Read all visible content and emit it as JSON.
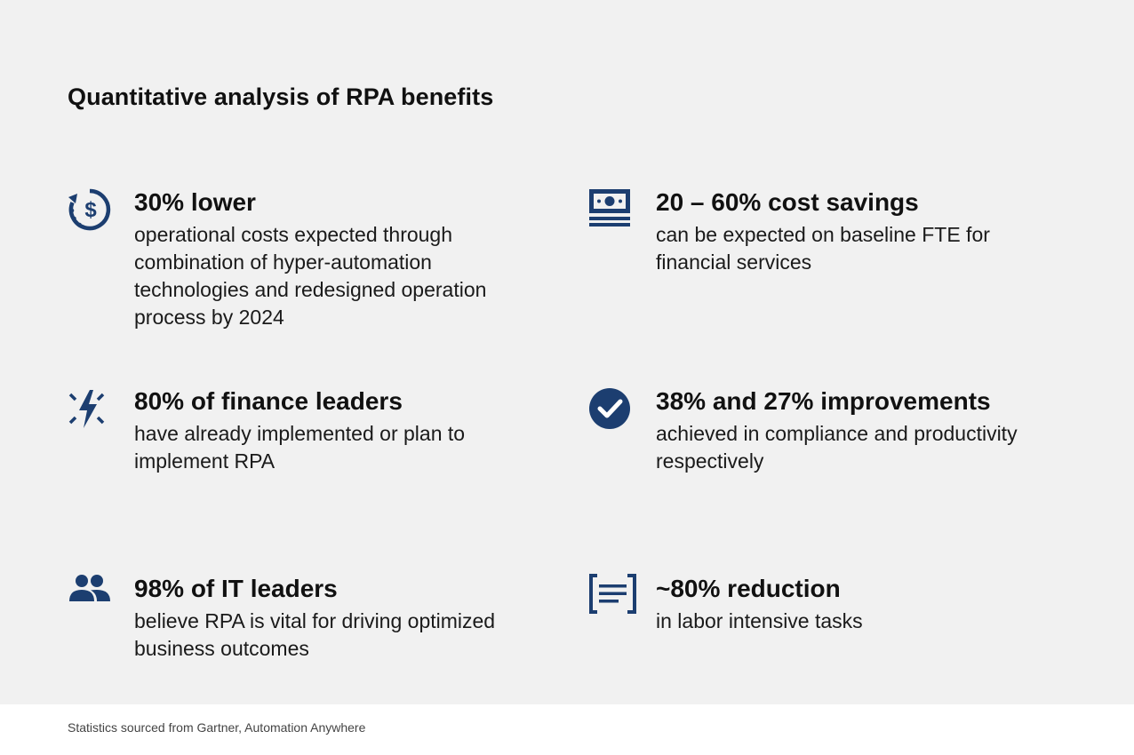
{
  "title": "Quantitative analysis of RPA benefits",
  "accent_color": "#1c3e70",
  "stats": [
    {
      "icon": "dollar-refresh-icon",
      "headline": "30% lower",
      "description": "operational costs expected through combination of hyper-automation technologies and redesigned operation process by 2024"
    },
    {
      "icon": "banknote-icon",
      "headline": "20 – 60% cost savings",
      "description": "can be expected on baseline FTE for financial services"
    },
    {
      "icon": "lightning-icon",
      "headline": "80% of finance leaders",
      "description": "have already implemented or plan to implement RPA"
    },
    {
      "icon": "check-circle-icon",
      "headline": "38% and 27% improvements",
      "description": "achieved in compliance and productivity respectively"
    },
    {
      "icon": "people-icon",
      "headline": "98% of IT leaders",
      "description": "believe RPA is vital for driving optimized business outcomes"
    },
    {
      "icon": "document-lines-icon",
      "headline": "~80% reduction",
      "description": "in labor intensive tasks"
    }
  ],
  "footer": "Statistics sourced from Gartner, Automation Anywhere"
}
